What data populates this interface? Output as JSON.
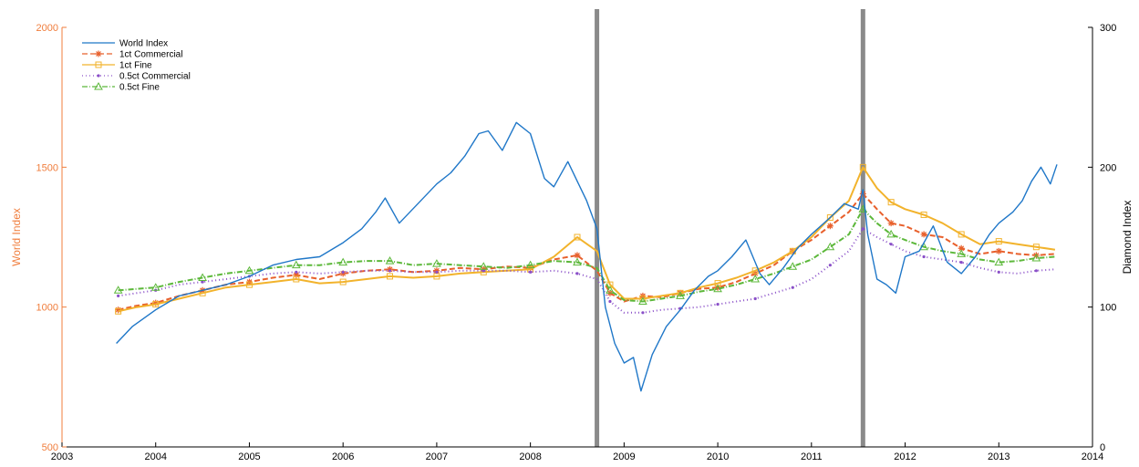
{
  "chart_data": {
    "type": "line",
    "xlim": [
      2003,
      2014
    ],
    "x_ticks": [
      "2003",
      "2004",
      "2005",
      "2006",
      "2007",
      "2008",
      "2009",
      "2010",
      "2011",
      "2012",
      "2013",
      "2014"
    ],
    "y_left": {
      "label": "World Index",
      "lim": [
        500,
        2000
      ],
      "ticks": [
        "500",
        "1000",
        "1500",
        "2000"
      ],
      "color": "#f07d3c"
    },
    "y_right": {
      "label": "Diamond Index",
      "lim": [
        0,
        300
      ],
      "ticks": [
        "0",
        "100",
        "200",
        "300"
      ],
      "color": "#000000"
    },
    "vertical_markers": [
      2008.71,
      2011.55
    ],
    "legend_placement": "top-left",
    "grid": false,
    "series": [
      {
        "name": "World Index",
        "axis": "left",
        "color": "#1f77c8",
        "dash": "",
        "marker": "none",
        "x": [
          2003.58,
          2003.75,
          2004.0,
          2004.25,
          2004.5,
          2004.75,
          2005.0,
          2005.25,
          2005.5,
          2005.75,
          2006.0,
          2006.2,
          2006.35,
          2006.45,
          2006.6,
          2006.8,
          2007.0,
          2007.15,
          2007.3,
          2007.45,
          2007.55,
          2007.7,
          2007.85,
          2008.0,
          2008.15,
          2008.25,
          2008.4,
          2008.5,
          2008.6,
          2008.71,
          2008.8,
          2008.9,
          2009.0,
          2009.1,
          2009.18,
          2009.3,
          2009.45,
          2009.6,
          2009.75,
          2009.9,
          2010.0,
          2010.15,
          2010.3,
          2010.45,
          2010.55,
          2010.7,
          2010.85,
          2011.0,
          2011.2,
          2011.35,
          2011.5,
          2011.55,
          2011.6,
          2011.7,
          2011.8,
          2011.9,
          2012.0,
          2012.15,
          2012.3,
          2012.45,
          2012.6,
          2012.75,
          2012.9,
          2013.0,
          2013.15,
          2013.25,
          2013.35,
          2013.45,
          2013.55,
          2013.62
        ],
        "y": [
          870,
          930,
          990,
          1040,
          1060,
          1080,
          1110,
          1150,
          1170,
          1180,
          1230,
          1280,
          1340,
          1390,
          1300,
          1370,
          1440,
          1480,
          1540,
          1620,
          1630,
          1560,
          1660,
          1620,
          1460,
          1430,
          1520,
          1450,
          1380,
          1280,
          1000,
          870,
          800,
          820,
          700,
          830,
          930,
          990,
          1060,
          1110,
          1130,
          1180,
          1240,
          1120,
          1080,
          1140,
          1210,
          1260,
          1320,
          1370,
          1350,
          1420,
          1260,
          1100,
          1080,
          1050,
          1180,
          1200,
          1290,
          1160,
          1120,
          1180,
          1260,
          1300,
          1340,
          1380,
          1450,
          1500,
          1440,
          1510
        ]
      },
      {
        "name": "1ct Commercial",
        "axis": "right",
        "color": "#e8602c",
        "dash": "6,3",
        "marker": "star",
        "x": [
          2003.6,
          2003.8,
          2004.0,
          2004.25,
          2004.5,
          2004.75,
          2005.0,
          2005.25,
          2005.5,
          2005.75,
          2006.0,
          2006.25,
          2006.5,
          2006.75,
          2007.0,
          2007.25,
          2007.5,
          2007.75,
          2008.0,
          2008.25,
          2008.5,
          2008.71,
          2008.85,
          2009.0,
          2009.2,
          2009.4,
          2009.6,
          2009.8,
          2010.0,
          2010.2,
          2010.4,
          2010.6,
          2010.8,
          2011.0,
          2011.2,
          2011.4,
          2011.55,
          2011.7,
          2011.85,
          2012.0,
          2012.2,
          2012.4,
          2012.6,
          2012.8,
          2013.0,
          2013.2,
          2013.4,
          2013.6
        ],
        "y": [
          98,
          101,
          103,
          108,
          112,
          116,
          118,
          121,
          123,
          120,
          124,
          126,
          127,
          125,
          126,
          128,
          127,
          129,
          128,
          134,
          137,
          126,
          110,
          104,
          108,
          107,
          110,
          113,
          114,
          118,
          124,
          130,
          140,
          148,
          158,
          168,
          181,
          170,
          160,
          158,
          152,
          150,
          142,
          138,
          140,
          138,
          137,
          138
        ]
      },
      {
        "name": "1ct Fine",
        "axis": "right",
        "color": "#f2b32c",
        "dash": "",
        "marker": "square",
        "x": [
          2003.6,
          2003.8,
          2004.0,
          2004.25,
          2004.5,
          2004.75,
          2005.0,
          2005.25,
          2005.5,
          2005.75,
          2006.0,
          2006.25,
          2006.5,
          2006.75,
          2007.0,
          2007.25,
          2007.5,
          2007.75,
          2008.0,
          2008.25,
          2008.5,
          2008.71,
          2008.85,
          2009.0,
          2009.2,
          2009.4,
          2009.6,
          2009.8,
          2010.0,
          2010.2,
          2010.4,
          2010.6,
          2010.8,
          2011.0,
          2011.2,
          2011.4,
          2011.55,
          2011.7,
          2011.85,
          2012.0,
          2012.2,
          2012.4,
          2012.6,
          2012.8,
          2013.0,
          2013.2,
          2013.4,
          2013.6
        ],
        "y": [
          97,
          100,
          102,
          106,
          110,
          114,
          116,
          118,
          120,
          117,
          118,
          120,
          122,
          121,
          122,
          124,
          125,
          126,
          127,
          136,
          150,
          140,
          116,
          106,
          106,
          108,
          110,
          114,
          117,
          121,
          126,
          132,
          140,
          150,
          164,
          176,
          200,
          185,
          175,
          170,
          166,
          160,
          152,
          145,
          147,
          145,
          143,
          141
        ]
      },
      {
        "name": "0.5ct Commercial",
        "axis": "right",
        "color": "#8a4fc8",
        "dash": "1,3",
        "marker": "dot",
        "x": [
          2003.6,
          2003.8,
          2004.0,
          2004.25,
          2004.5,
          2004.75,
          2005.0,
          2005.25,
          2005.5,
          2005.75,
          2006.0,
          2006.25,
          2006.5,
          2006.75,
          2007.0,
          2007.25,
          2007.5,
          2007.75,
          2008.0,
          2008.25,
          2008.5,
          2008.71,
          2008.85,
          2009.0,
          2009.2,
          2009.4,
          2009.6,
          2009.8,
          2010.0,
          2010.2,
          2010.4,
          2010.6,
          2010.8,
          2011.0,
          2011.2,
          2011.4,
          2011.55,
          2011.7,
          2011.85,
          2012.0,
          2012.2,
          2012.4,
          2012.6,
          2012.8,
          2013.0,
          2013.2,
          2013.4,
          2013.6
        ],
        "y": [
          108,
          110,
          112,
          116,
          118,
          120,
          122,
          124,
          125,
          124,
          125,
          126,
          126,
          125,
          125,
          126,
          126,
          126,
          125,
          126,
          124,
          120,
          104,
          96,
          96,
          98,
          99,
          100,
          102,
          104,
          106,
          110,
          114,
          120,
          130,
          140,
          156,
          150,
          145,
          140,
          136,
          134,
          132,
          128,
          125,
          124,
          126,
          127
        ]
      },
      {
        "name": "0.5ct Fine",
        "axis": "right",
        "color": "#5cb83a",
        "dash": "6,2,1,2",
        "marker": "triangle",
        "x": [
          2003.6,
          2003.8,
          2004.0,
          2004.25,
          2004.5,
          2004.75,
          2005.0,
          2005.25,
          2005.5,
          2005.75,
          2006.0,
          2006.25,
          2006.5,
          2006.75,
          2007.0,
          2007.25,
          2007.5,
          2007.75,
          2008.0,
          2008.25,
          2008.5,
          2008.71,
          2008.85,
          2009.0,
          2009.2,
          2009.4,
          2009.6,
          2009.8,
          2010.0,
          2010.2,
          2010.4,
          2010.6,
          2010.8,
          2011.0,
          2011.2,
          2011.4,
          2011.55,
          2011.7,
          2011.85,
          2012.0,
          2012.2,
          2012.4,
          2012.6,
          2012.8,
          2013.0,
          2013.2,
          2013.4,
          2013.6
        ],
        "y": [
          112,
          113,
          114,
          118,
          121,
          124,
          126,
          128,
          130,
          130,
          132,
          133,
          133,
          130,
          131,
          130,
          129,
          128,
          130,
          133,
          132,
          128,
          112,
          105,
          104,
          106,
          108,
          111,
          113,
          116,
          120,
          124,
          129,
          134,
          143,
          152,
          170,
          160,
          152,
          148,
          143,
          140,
          138,
          134,
          132,
          133,
          135,
          136
        ]
      }
    ]
  }
}
